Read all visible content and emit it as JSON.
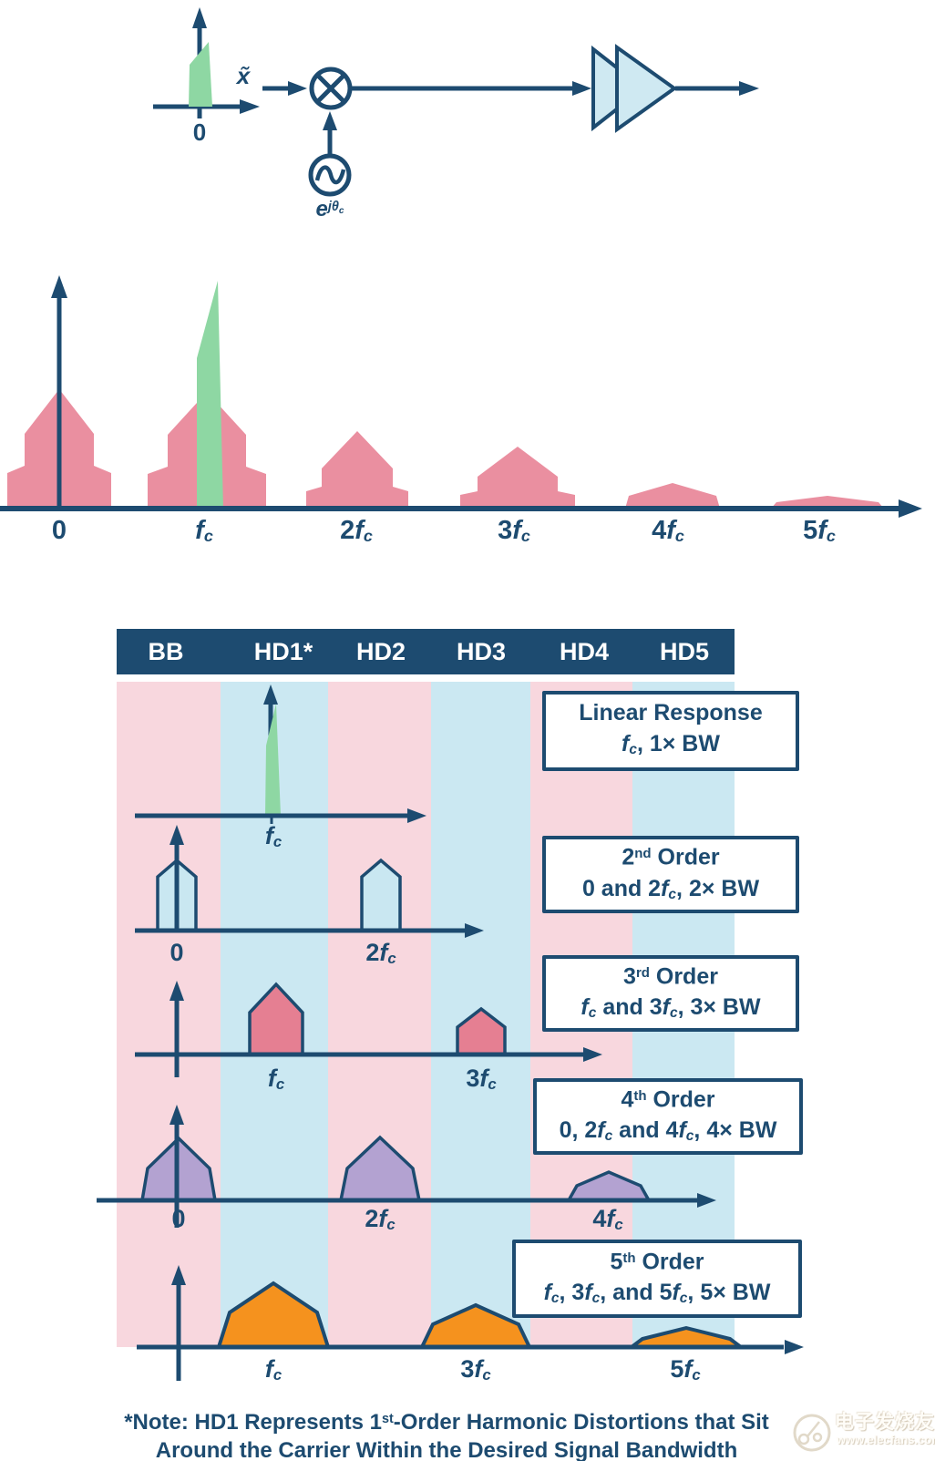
{
  "colors": {
    "navy": "#1d4b70",
    "pink_stripe": "#f8d7de",
    "blue_stripe": "#cbe8f2",
    "rose_spectrum": "#ea8fa0",
    "green_signal": "#8ed7a3",
    "light_blue_fill": "#c9e7f1",
    "red_hump": "#e57f92",
    "purple_hump": "#b3a2d1",
    "orange_hump": "#f5921e",
    "header_text": "#ffffff"
  },
  "block_diagram": {
    "zero_label": [
      {
        "t": "0"
      }
    ],
    "input_label": [
      {
        "t": "x̃",
        "s": "fi"
      }
    ],
    "osc_label": [
      {
        "t": "e",
        "s": "fi"
      },
      {
        "t": "jθ",
        "s": "supi"
      },
      {
        "t": "c",
        "s": "supsub"
      }
    ]
  },
  "spectrum": {
    "ticks": [
      [
        {
          "t": "0"
        }
      ],
      [
        {
          "t": "f",
          "s": "fi"
        },
        {
          "t": "c",
          "s": "sub"
        }
      ],
      [
        {
          "t": "2"
        },
        {
          "t": "f",
          "s": "fi"
        },
        {
          "t": "c",
          "s": "sub"
        }
      ],
      [
        {
          "t": "3"
        },
        {
          "t": "f",
          "s": "fi"
        },
        {
          "t": "c",
          "s": "sub"
        }
      ],
      [
        {
          "t": "4"
        },
        {
          "t": "f",
          "s": "fi"
        },
        {
          "t": "c",
          "s": "sub"
        }
      ],
      [
        {
          "t": "5"
        },
        {
          "t": "f",
          "s": "fi"
        },
        {
          "t": "c",
          "s": "sub"
        }
      ]
    ]
  },
  "chart": {
    "header": [
      "BB",
      "HD1*",
      "HD2",
      "HD3",
      "HD4",
      "HD5"
    ],
    "rows": [
      {
        "box": [
          [
            {
              "t": "Linear Response"
            }
          ],
          [
            {
              "t": "f",
              "s": "fi"
            },
            {
              "t": "c",
              "s": "sub"
            },
            {
              "t": ", 1× BW"
            }
          ]
        ],
        "ticks": [
          [
            {
              "t": "f",
              "s": "fi"
            },
            {
              "t": "c",
              "s": "sub"
            }
          ]
        ]
      },
      {
        "box": [
          [
            {
              "t": "2"
            },
            {
              "t": "nd",
              "s": "sup"
            },
            {
              "t": " Order"
            }
          ],
          [
            {
              "t": "0 and 2"
            },
            {
              "t": "f",
              "s": "fi"
            },
            {
              "t": "c",
              "s": "sub"
            },
            {
              "t": ", 2× BW"
            }
          ]
        ],
        "ticks": [
          [
            {
              "t": "0"
            }
          ],
          [
            {
              "t": "2"
            },
            {
              "t": "f",
              "s": "fi"
            },
            {
              "t": "c",
              "s": "sub"
            }
          ]
        ]
      },
      {
        "box": [
          [
            {
              "t": "3"
            },
            {
              "t": "rd",
              "s": "sup"
            },
            {
              "t": " Order"
            }
          ],
          [
            {
              "t": "f",
              "s": "fi"
            },
            {
              "t": "c",
              "s": "sub"
            },
            {
              "t": " and 3"
            },
            {
              "t": "f",
              "s": "fi"
            },
            {
              "t": "c",
              "s": "sub"
            },
            {
              "t": ", 3× BW"
            }
          ]
        ],
        "ticks": [
          [
            {
              "t": "f",
              "s": "fi"
            },
            {
              "t": "c",
              "s": "sub"
            }
          ],
          [
            {
              "t": "3"
            },
            {
              "t": "f",
              "s": "fi"
            },
            {
              "t": "c",
              "s": "sub"
            }
          ]
        ]
      },
      {
        "box": [
          [
            {
              "t": "4"
            },
            {
              "t": "th",
              "s": "sup"
            },
            {
              "t": " Order"
            }
          ],
          [
            {
              "t": "0, 2"
            },
            {
              "t": "f",
              "s": "fi"
            },
            {
              "t": "c",
              "s": "sub"
            },
            {
              "t": " and 4"
            },
            {
              "t": "f",
              "s": "fi"
            },
            {
              "t": "c",
              "s": "sub"
            },
            {
              "t": ", 4× BW"
            }
          ]
        ],
        "ticks": [
          [
            {
              "t": "0"
            }
          ],
          [
            {
              "t": "2"
            },
            {
              "t": "f",
              "s": "fi"
            },
            {
              "t": "c",
              "s": "sub"
            }
          ],
          [
            {
              "t": "4"
            },
            {
              "t": "f",
              "s": "fi"
            },
            {
              "t": "c",
              "s": "sub"
            }
          ]
        ]
      },
      {
        "box": [
          [
            {
              "t": "5"
            },
            {
              "t": "th",
              "s": "sup"
            },
            {
              "t": " Order"
            }
          ],
          [
            {
              "t": "f",
              "s": "fi"
            },
            {
              "t": "c",
              "s": "sub"
            },
            {
              "t": ", 3"
            },
            {
              "t": "f",
              "s": "fi"
            },
            {
              "t": "c",
              "s": "sub"
            },
            {
              "t": ", and 5"
            },
            {
              "t": "f",
              "s": "fi"
            },
            {
              "t": "c",
              "s": "sub"
            },
            {
              "t": ", 5× BW"
            }
          ]
        ],
        "ticks": [
          [
            {
              "t": "f",
              "s": "fi"
            },
            {
              "t": "c",
              "s": "sub"
            }
          ],
          [
            {
              "t": "3"
            },
            {
              "t": "f",
              "s": "fi"
            },
            {
              "t": "c",
              "s": "sub"
            }
          ],
          [
            {
              "t": "5"
            },
            {
              "t": "f",
              "s": "fi"
            },
            {
              "t": "c",
              "s": "sub"
            }
          ]
        ]
      }
    ],
    "note": [
      [
        {
          "t": "*Note: HD1 Represents 1"
        },
        {
          "t": "st",
          "s": "sup"
        },
        {
          "t": "-Order Harmonic Distortions that Sit"
        }
      ],
      [
        {
          "t": "Around the Carrier Within the Desired Signal Bandwidth"
        }
      ]
    ]
  },
  "watermark": {
    "cn": "电子发烧友",
    "url": "www.elecfans.com"
  }
}
